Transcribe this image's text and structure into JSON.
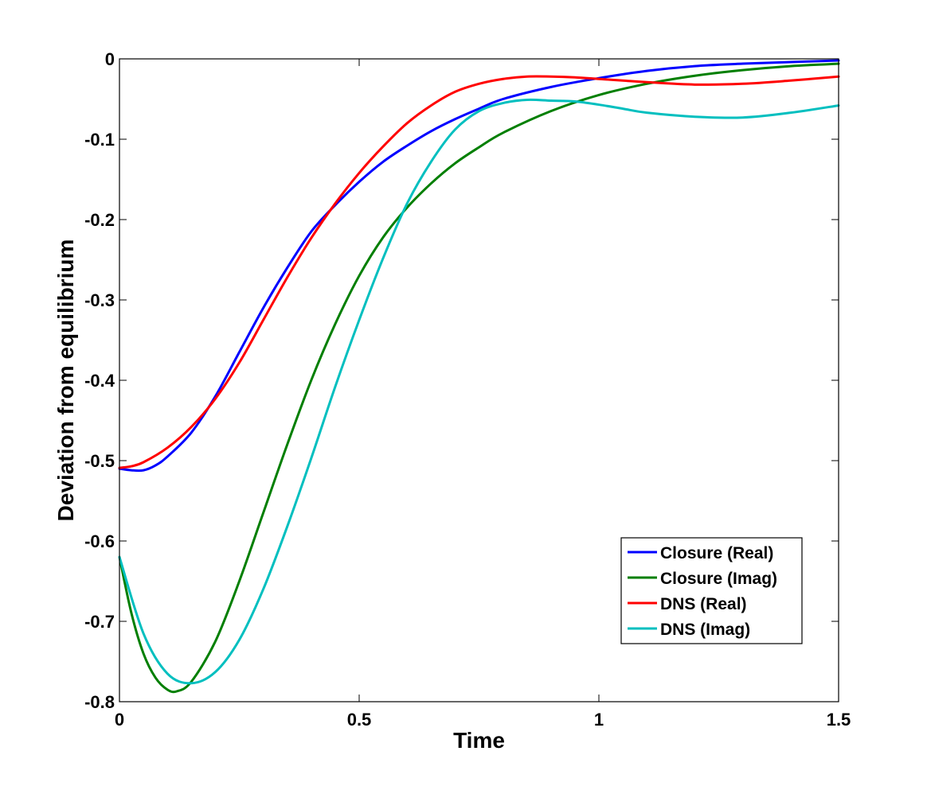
{
  "chart_data": {
    "type": "line",
    "title": "",
    "xlabel": "Time",
    "ylabel": "Deviation from equilibrium",
    "xlim": [
      0,
      1.5
    ],
    "ylim": [
      -0.8,
      0
    ],
    "xticks": [
      0,
      0.5,
      1,
      1.5
    ],
    "xtick_labels": [
      "0",
      "0.5",
      "1",
      "1.5"
    ],
    "yticks": [
      0,
      -0.1,
      -0.2,
      -0.3,
      -0.4,
      -0.5,
      -0.6,
      -0.7,
      -0.8
    ],
    "ytick_labels": [
      "0",
      "-0.1",
      "-0.2",
      "-0.3",
      "-0.4",
      "-0.5",
      "-0.6",
      "-0.7",
      "-0.8"
    ],
    "grid": false,
    "legend_position": "bottom-right",
    "series": [
      {
        "name": "Closure (Real)",
        "color": "#0000ff",
        "x": [
          0,
          0.025,
          0.05,
          0.075,
          0.1,
          0.15,
          0.2,
          0.25,
          0.3,
          0.35,
          0.4,
          0.45,
          0.5,
          0.55,
          0.6,
          0.65,
          0.7,
          0.75,
          0.8,
          0.9,
          1.0,
          1.1,
          1.2,
          1.3,
          1.4,
          1.5
        ],
        "y": [
          -0.51,
          -0.512,
          -0.512,
          -0.506,
          -0.495,
          -0.465,
          -0.42,
          -0.365,
          -0.31,
          -0.26,
          -0.215,
          -0.182,
          -0.153,
          -0.128,
          -0.108,
          -0.09,
          -0.075,
          -0.062,
          -0.05,
          -0.035,
          -0.024,
          -0.015,
          -0.009,
          -0.006,
          -0.004,
          -0.002
        ]
      },
      {
        "name": "Closure (Imag)",
        "color": "#007f00",
        "x": [
          0,
          0.025,
          0.05,
          0.075,
          0.1,
          0.12,
          0.15,
          0.2,
          0.25,
          0.3,
          0.35,
          0.4,
          0.45,
          0.5,
          0.55,
          0.6,
          0.65,
          0.7,
          0.75,
          0.8,
          0.9,
          1.0,
          1.1,
          1.2,
          1.3,
          1.4,
          1.5
        ],
        "y": [
          -0.62,
          -0.69,
          -0.74,
          -0.77,
          -0.785,
          -0.787,
          -0.775,
          -0.725,
          -0.65,
          -0.565,
          -0.48,
          -0.4,
          -0.33,
          -0.27,
          -0.222,
          -0.185,
          -0.155,
          -0.13,
          -0.11,
          -0.092,
          -0.065,
          -0.045,
          -0.031,
          -0.021,
          -0.014,
          -0.009,
          -0.006
        ]
      },
      {
        "name": "DNS (Real)",
        "color": "#ff0000",
        "x": [
          0,
          0.025,
          0.05,
          0.1,
          0.15,
          0.2,
          0.25,
          0.3,
          0.35,
          0.4,
          0.45,
          0.5,
          0.55,
          0.6,
          0.65,
          0.7,
          0.75,
          0.8,
          0.85,
          0.9,
          0.95,
          1.0,
          1.05,
          1.1,
          1.2,
          1.3,
          1.4,
          1.5
        ],
        "y": [
          -0.509,
          -0.507,
          -0.502,
          -0.484,
          -0.458,
          -0.423,
          -0.378,
          -0.325,
          -0.272,
          -0.223,
          -0.18,
          -0.142,
          -0.109,
          -0.08,
          -0.058,
          -0.041,
          -0.031,
          -0.025,
          -0.022,
          -0.022,
          -0.023,
          -0.025,
          -0.027,
          -0.029,
          -0.032,
          -0.031,
          -0.027,
          -0.022
        ]
      },
      {
        "name": "DNS (Imag)",
        "color": "#00bfbf",
        "x": [
          0,
          0.05,
          0.1,
          0.15,
          0.2,
          0.25,
          0.3,
          0.35,
          0.4,
          0.45,
          0.5,
          0.55,
          0.6,
          0.65,
          0.7,
          0.75,
          0.8,
          0.85,
          0.9,
          0.95,
          1.0,
          1.05,
          1.1,
          1.2,
          1.3,
          1.4,
          1.5
        ],
        "y": [
          -0.62,
          -0.715,
          -0.765,
          -0.777,
          -0.763,
          -0.723,
          -0.66,
          -0.582,
          -0.497,
          -0.408,
          -0.325,
          -0.248,
          -0.18,
          -0.128,
          -0.088,
          -0.065,
          -0.055,
          -0.051,
          -0.052,
          -0.053,
          -0.057,
          -0.062,
          -0.067,
          -0.072,
          -0.073,
          -0.067,
          -0.058
        ]
      }
    ]
  }
}
